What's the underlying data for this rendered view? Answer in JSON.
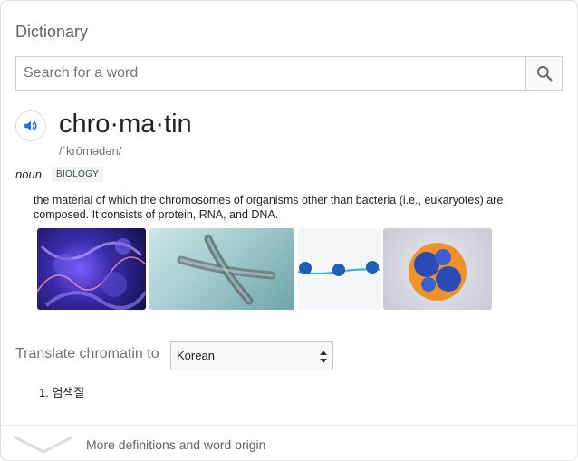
{
  "card": {
    "title": "Dictionary"
  },
  "search": {
    "placeholder": "Search for a word",
    "value": ""
  },
  "entry": {
    "word": "chro·ma·tin",
    "pronunciation": "/ˈkrōmədən/",
    "part_of_speech": "noun",
    "tag": "BIOLOGY",
    "definition": "the material of which the chromosomes of organisms other than bacteria (i.e., eukaryotes) are composed. It consists of protein, RNA, and DNA."
  },
  "translate": {
    "label": "Translate chromatin to",
    "selected_language": "Korean",
    "results": [
      "1. 염색질"
    ]
  },
  "footer": {
    "more_label": "More definitions and word origin"
  },
  "colors": {
    "accent": "#1a73e8",
    "muted": "#70757a"
  }
}
